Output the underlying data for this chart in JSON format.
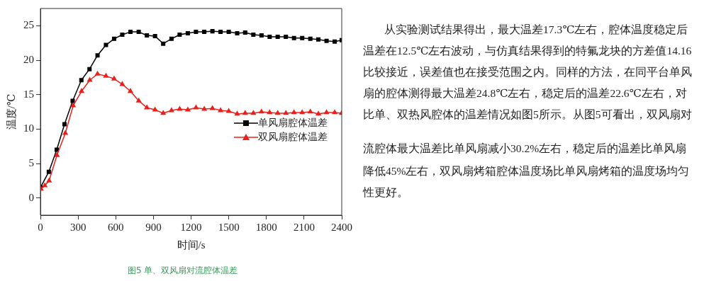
{
  "chart_data": {
    "type": "line",
    "xlabel": "时间/s",
    "ylabel": "温度/℃",
    "xlim": [
      0,
      2400
    ],
    "xticks": [
      0,
      300,
      600,
      900,
      1200,
      1500,
      1800,
      2100,
      2400
    ],
    "ylim": [
      -2.5,
      27.5
    ],
    "yticks": [
      0,
      5,
      10,
      15,
      20,
      25
    ],
    "grid": false,
    "legend": "right",
    "line_style": "solid",
    "series": [
      {
        "name": "单风扇腔体温差",
        "color": "#000000",
        "marker": "square",
        "x": [
          0,
          67,
          130,
          192,
          257,
          326,
          391,
          455,
          522,
          587,
          652,
          717,
          783,
          848,
          913,
          978,
          1044,
          1109,
          1174,
          1239,
          1305,
          1370,
          1435,
          1500,
          1567,
          1631,
          1696,
          1761,
          1826,
          1890,
          1955,
          2020,
          2085,
          2150,
          2214,
          2279,
          2344,
          2400
        ],
        "values": [
          1.5,
          3.8,
          7.0,
          10.7,
          14.1,
          17.1,
          18.7,
          20.7,
          22.2,
          23.1,
          23.7,
          24.1,
          24.1,
          23.6,
          23.5,
          22.4,
          23.1,
          23.7,
          23.9,
          24.1,
          24.1,
          24.2,
          24.1,
          24.1,
          23.9,
          24.0,
          23.7,
          23.6,
          23.4,
          23.4,
          23.4,
          23.2,
          23.2,
          23.1,
          23.0,
          22.8,
          22.7,
          22.9
        ]
      },
      {
        "name": "双风扇腔体温差",
        "color": "#e8211c",
        "marker": "triangle",
        "x": [
          4,
          35,
          69,
          132,
          198,
          261,
          328,
          393,
          455,
          522,
          587,
          652,
          717,
          783,
          848,
          913,
          978,
          1044,
          1109,
          1174,
          1239,
          1305,
          1370,
          1435,
          1500,
          1567,
          1631,
          1696,
          1761,
          1826,
          1890,
          1955,
          2020,
          2085,
          2150,
          2214,
          2279,
          2344,
          2400
        ],
        "values": [
          1.3,
          1.8,
          2.5,
          6.2,
          9.4,
          13.4,
          15.5,
          17.1,
          18.0,
          17.7,
          17.3,
          16.5,
          15.5,
          14.1,
          13.1,
          12.8,
          12.3,
          12.7,
          12.9,
          12.8,
          13.1,
          12.9,
          13.0,
          12.7,
          12.6,
          12.2,
          12.3,
          12.3,
          12.5,
          12.4,
          12.3,
          12.3,
          12.4,
          12.4,
          12.5,
          12.2,
          12.4,
          12.4,
          12.3
        ]
      }
    ],
    "annotations": [
      "从实验测试结果得出，最大温差17.3℃左右，腔体温度稳定后",
      "温差在12.5℃左右波动，与仿真结果得到的特氟龙块的方差值14.16",
      "比较接近，误差值也在接受范围之内。同样的方法，在同平台单风",
      "扇的腔体测得最大温差24.8℃左右，稳定后的温差22.6℃左右，对",
      "比单、双热风腔体的温差情况如图5所示。从图5可看出，双风扇对",
      "流腔体最大温差比单风扇减小30.2%左右，稳定后的温差比单风扇",
      "降低45%左右，双风扇烤箱腔体温度场比单风扇烤箱的温度场均匀",
      "性更好。",
      "图5 单、双风扇对流腔体温差"
    ]
  }
}
